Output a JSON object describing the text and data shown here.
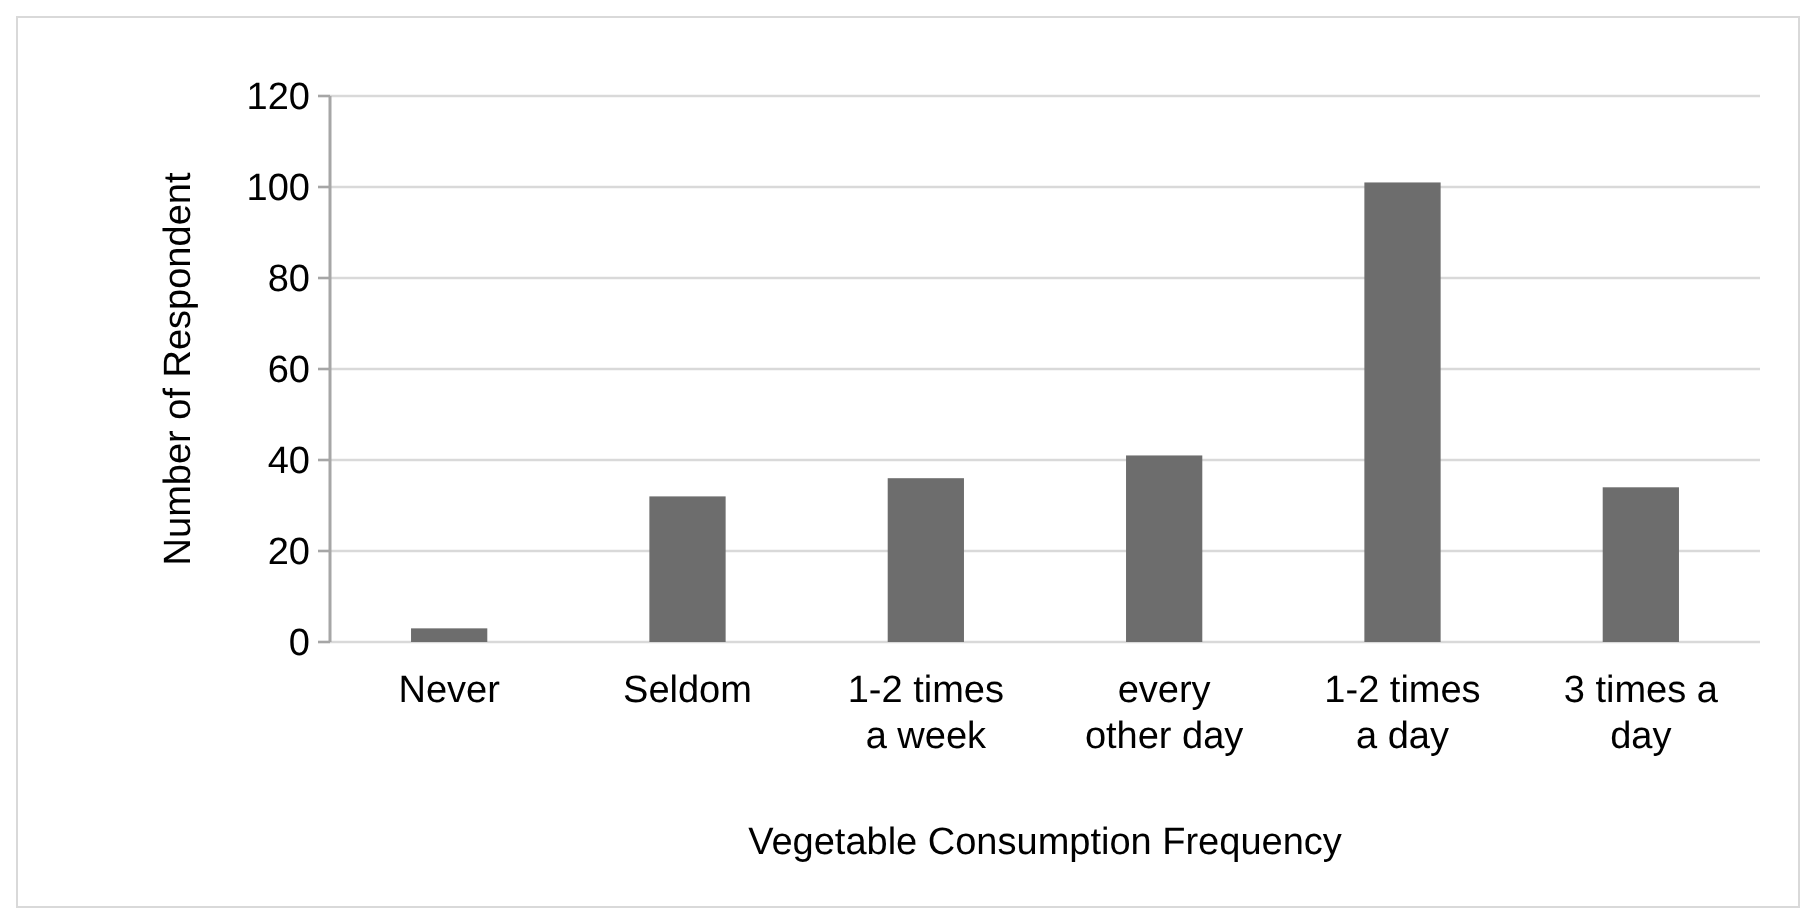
{
  "chart_data": {
    "type": "bar",
    "xlabel": "Vegetable Consumption Frequency",
    "ylabel": "Number of Respondent",
    "categories": [
      "Never",
      "Seldom",
      "1-2 times a week",
      "every other day",
      "1-2 times a day",
      "3 times a day"
    ],
    "values": [
      3,
      32,
      36,
      41,
      101,
      34
    ],
    "color": "#6d6d6d",
    "ylim": [
      0,
      120
    ],
    "yticks": [
      0,
      20,
      40,
      60,
      80,
      100,
      120
    ],
    "grid": "y"
  }
}
